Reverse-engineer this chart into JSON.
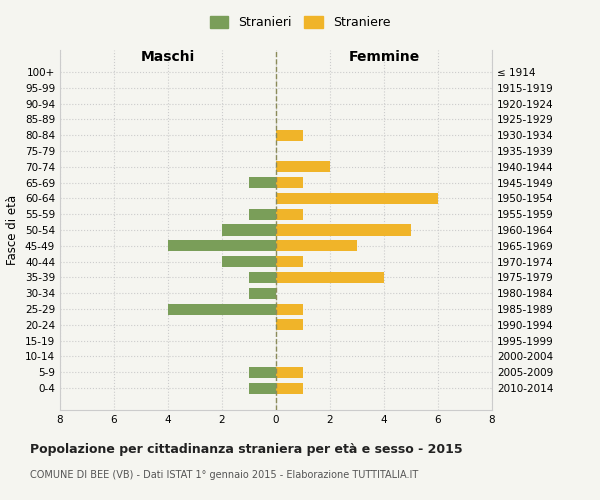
{
  "age_groups": [
    "100+",
    "95-99",
    "90-94",
    "85-89",
    "80-84",
    "75-79",
    "70-74",
    "65-69",
    "60-64",
    "55-59",
    "50-54",
    "45-49",
    "40-44",
    "35-39",
    "30-34",
    "25-29",
    "20-24",
    "15-19",
    "10-14",
    "5-9",
    "0-4"
  ],
  "birth_years": [
    "≤ 1914",
    "1915-1919",
    "1920-1924",
    "1925-1929",
    "1930-1934",
    "1935-1939",
    "1940-1944",
    "1945-1949",
    "1950-1954",
    "1955-1959",
    "1960-1964",
    "1965-1969",
    "1970-1974",
    "1975-1979",
    "1980-1984",
    "1985-1989",
    "1990-1994",
    "1995-1999",
    "2000-2004",
    "2005-2009",
    "2010-2014"
  ],
  "males": [
    0,
    0,
    0,
    0,
    0,
    0,
    0,
    1,
    0,
    1,
    2,
    4,
    2,
    1,
    1,
    4,
    0,
    0,
    0,
    1,
    1
  ],
  "females": [
    0,
    0,
    0,
    0,
    1,
    0,
    2,
    1,
    6,
    1,
    5,
    3,
    1,
    4,
    0,
    1,
    1,
    0,
    0,
    1,
    1
  ],
  "male_color": "#7a9e59",
  "female_color": "#f0b429",
  "background_color": "#f5f5f0",
  "grid_color": "#cccccc",
  "center_line_color": "#8b8b5a",
  "title": "Popolazione per cittadinanza straniera per età e sesso - 2015",
  "subtitle": "COMUNE DI BEE (VB) - Dati ISTAT 1° gennaio 2015 - Elaborazione TUTTITALIA.IT",
  "ylabel_left": "Fasce di età",
  "xlabel_left": "Maschi",
  "xlabel_right": "Femmine",
  "legend_male": "Stranieri",
  "legend_female": "Straniere",
  "xlim": 8
}
